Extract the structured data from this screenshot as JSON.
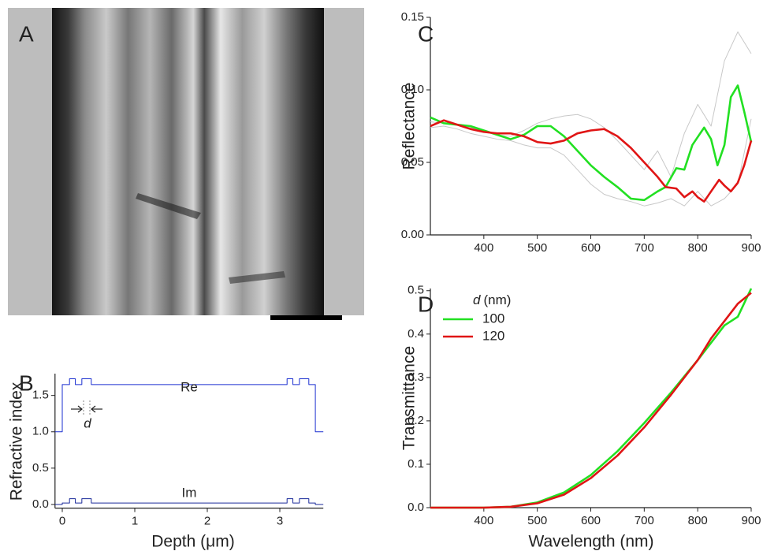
{
  "panel_a": {
    "label": "A"
  },
  "chart_data": [
    {
      "type": "line",
      "panel_label": "B",
      "xlabel": "Depth (μm)",
      "ylabel": "Refractive index",
      "annotations": [
        "Re",
        "Im",
        "d"
      ],
      "xlim": [
        -0.1,
        3.6
      ],
      "ylim": [
        -0.05,
        1.8
      ],
      "xticks": [
        0,
        1,
        2,
        3
      ],
      "yticks": [
        {
          "value": 0,
          "label": "0.0"
        },
        0.5,
        {
          "value": 1,
          "label": "1.0"
        },
        1.5
      ],
      "series": [
        {
          "color": "#1a2fd0",
          "x": [
            -0.1,
            0,
            0,
            0.1,
            0.1,
            0.18,
            0.18,
            0.27,
            0.27,
            0.4,
            0.4,
            3.1,
            3.1,
            3.18,
            3.18,
            3.27,
            3.27,
            3.4,
            3.4,
            3.49,
            3.49,
            3.6
          ],
          "values": [
            1,
            1,
            1.65,
            1.65,
            1.73,
            1.73,
            1.65,
            1.65,
            1.73,
            1.73,
            1.65,
            1.65,
            1.73,
            1.73,
            1.65,
            1.65,
            1.73,
            1.73,
            1.65,
            1.65,
            1,
            1
          ]
        },
        {
          "color": "#1a2a9a",
          "x": [
            -0.1,
            0,
            0,
            0.1,
            0.1,
            0.18,
            0.18,
            0.27,
            0.27,
            0.4,
            0.4,
            3.1,
            3.1,
            3.18,
            3.18,
            3.27,
            3.27,
            3.4,
            3.4,
            3.49,
            3.49,
            3.6
          ],
          "values": [
            0,
            0,
            0.02,
            0.02,
            0.08,
            0.08,
            0.02,
            0.02,
            0.08,
            0.08,
            0.02,
            0.02,
            0.08,
            0.08,
            0.02,
            0.02,
            0.08,
            0.08,
            0.02,
            0.02,
            0,
            0
          ]
        }
      ]
    },
    {
      "type": "line",
      "panel_label": "C",
      "ylabel": "Reflectance",
      "xlim": [
        300,
        900
      ],
      "ylim": [
        0,
        0.15
      ],
      "xticks": [
        400,
        500,
        600,
        700,
        800,
        900
      ],
      "yticks": [
        {
          "value": 0,
          "label": "0.00"
        },
        0.05,
        {
          "value": 0.1,
          "label": "0.10"
        },
        0.15
      ],
      "series": [
        {
          "color": "#c8c8c8",
          "x": [
            300,
            325,
            350,
            375,
            400,
            425,
            450,
            475,
            500,
            525,
            550,
            575,
            600,
            625,
            650,
            675,
            700,
            725,
            750,
            775,
            800,
            825,
            850,
            875,
            900
          ],
          "values": [
            0.078,
            0.077,
            0.076,
            0.074,
            0.071,
            0.069,
            0.068,
            0.072,
            0.077,
            0.08,
            0.082,
            0.083,
            0.08,
            0.074,
            0.065,
            0.055,
            0.045,
            0.058,
            0.04,
            0.07,
            0.09,
            0.075,
            0.12,
            0.14,
            0.125
          ]
        },
        {
          "color": "#c8c8c8",
          "x": [
            300,
            325,
            350,
            375,
            400,
            425,
            450,
            475,
            500,
            525,
            550,
            575,
            600,
            625,
            650,
            675,
            700,
            725,
            750,
            775,
            800,
            825,
            850,
            875,
            900
          ],
          "values": [
            0.074,
            0.075,
            0.073,
            0.07,
            0.068,
            0.066,
            0.065,
            0.062,
            0.06,
            0.06,
            0.055,
            0.045,
            0.035,
            0.028,
            0.025,
            0.023,
            0.02,
            0.022,
            0.025,
            0.02,
            0.03,
            0.02,
            0.025,
            0.035,
            0.08
          ]
        },
        {
          "name": "100",
          "color": "#22e022",
          "x": [
            300,
            325,
            350,
            375,
            400,
            425,
            450,
            475,
            500,
            525,
            550,
            575,
            600,
            625,
            650,
            675,
            700,
            725,
            740,
            760,
            775,
            790,
            812,
            825,
            837,
            850,
            862,
            875,
            887,
            900
          ],
          "values": [
            0.081,
            0.077,
            0.076,
            0.075,
            0.072,
            0.069,
            0.066,
            0.069,
            0.075,
            0.075,
            0.068,
            0.058,
            0.048,
            0.04,
            0.033,
            0.025,
            0.024,
            0.03,
            0.033,
            0.046,
            0.045,
            0.062,
            0.074,
            0.066,
            0.048,
            0.062,
            0.095,
            0.103,
            0.085,
            0.064
          ]
        },
        {
          "name": "120",
          "color": "#e01515",
          "x": [
            300,
            325,
            350,
            375,
            400,
            425,
            450,
            475,
            500,
            525,
            550,
            575,
            600,
            625,
            650,
            675,
            700,
            725,
            740,
            760,
            775,
            790,
            800,
            812,
            825,
            840,
            850,
            862,
            875,
            887,
            900
          ],
          "values": [
            0.075,
            0.079,
            0.076,
            0.073,
            0.071,
            0.07,
            0.07,
            0.068,
            0.064,
            0.063,
            0.065,
            0.07,
            0.072,
            0.073,
            0.068,
            0.06,
            0.05,
            0.04,
            0.033,
            0.032,
            0.026,
            0.03,
            0.026,
            0.023,
            0.03,
            0.038,
            0.034,
            0.03,
            0.036,
            0.048,
            0.065
          ]
        }
      ]
    },
    {
      "type": "line",
      "panel_label": "D",
      "xlabel": "Wavelength (nm)",
      "ylabel": "Transmittance",
      "legend_title_symbol": "d",
      "legend_title_unit": "(nm)",
      "xlim": [
        300,
        900
      ],
      "ylim": [
        0,
        0.505
      ],
      "xticks": [
        400,
        500,
        600,
        700,
        800,
        900
      ],
      "yticks": [
        {
          "value": 0,
          "label": "0.0"
        },
        0.1,
        0.2,
        0.3,
        0.4,
        0.5
      ],
      "series": [
        {
          "name": "100",
          "color": "#22e022",
          "x": [
            300,
            400,
            450,
            500,
            550,
            600,
            650,
            700,
            750,
            800,
            825,
            850,
            875,
            900
          ],
          "values": [
            0,
            0,
            0.002,
            0.012,
            0.035,
            0.075,
            0.13,
            0.195,
            0.265,
            0.34,
            0.38,
            0.42,
            0.44,
            0.505
          ]
        },
        {
          "name": "120",
          "color": "#e01515",
          "x": [
            300,
            400,
            450,
            500,
            550,
            600,
            650,
            700,
            750,
            800,
            825,
            850,
            875,
            900
          ],
          "values": [
            0,
            0,
            0.002,
            0.01,
            0.03,
            0.068,
            0.12,
            0.185,
            0.26,
            0.34,
            0.39,
            0.43,
            0.47,
            0.495
          ]
        }
      ]
    }
  ]
}
